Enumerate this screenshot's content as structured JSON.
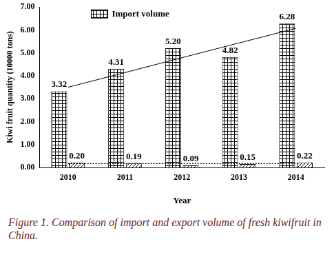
{
  "chart_data": {
    "type": "bar",
    "caption": "Figure 1. Comparison of import and export volume of fresh kiwifruit in China.",
    "x_label": "Year",
    "y_label": "Kiwi fruit quantity (10000 tons)",
    "categories": [
      "2010",
      "2011",
      "2012",
      "2013",
      "2014"
    ],
    "series": [
      {
        "name": "Import volume",
        "color": "#000000",
        "values": [
          3.32,
          4.31,
          5.2,
          4.82,
          6.28
        ],
        "value_labels": [
          "3.32",
          "4.31",
          "5.20",
          "4.82",
          "6.28"
        ]
      },
      {
        "color": "#000000",
        "values": [
          0.2,
          0.19,
          0.09,
          0.15,
          0.22
        ],
        "value_labels": [
          "0.20",
          "0.19",
          "0.09",
          "0.15",
          "0.22"
        ]
      },
      {
        "type": "line",
        "color": "#000000",
        "line_style": "solid",
        "values": [
          3.5,
          4.14,
          4.79,
          5.43,
          6.07
        ]
      },
      {
        "type": "line",
        "color": "#000000",
        "line_style": "dotted",
        "values": [
          0.17,
          0.17,
          0.17,
          0.17,
          0.17
        ]
      }
    ],
    "ylim": [
      0,
      7
    ],
    "yticks": [
      {
        "value": 0,
        "label": "0.00"
      },
      {
        "value": 1,
        "label": "1.00"
      },
      {
        "value": 2,
        "label": "2.00"
      },
      {
        "value": 3,
        "label": "3.00"
      },
      {
        "value": 4,
        "label": "4.00"
      },
      {
        "value": 5,
        "label": "5.00"
      },
      {
        "value": 6,
        "label": "6.00"
      },
      {
        "value": 7,
        "label": "7.00"
      }
    ],
    "grid": false,
    "legend": "upper left",
    "data_labels": true
  }
}
